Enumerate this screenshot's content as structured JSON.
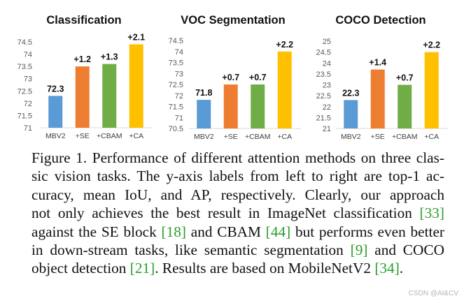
{
  "chart_data": [
    {
      "type": "bar",
      "title": "Classification",
      "categories": [
        "MBV2",
        "+SE",
        "+CBAM",
        "+CA"
      ],
      "values": [
        72.3,
        73.5,
        73.6,
        74.4
      ],
      "data_labels": [
        "72.3",
        "+1.2",
        "+1.3",
        "+2.1"
      ],
      "ylim": [
        71,
        74.5
      ],
      "yticks": [
        "71",
        "71.5",
        "72",
        "72.5",
        "73",
        "73.5",
        "74",
        "74.5"
      ],
      "xlabel": "",
      "ylabel": "",
      "colors": [
        "#5b9bd5",
        "#ed7d31",
        "#70ad47",
        "#ffc000"
      ]
    },
    {
      "type": "bar",
      "title": "VOC Segmentation",
      "categories": [
        "MBV2",
        "+SE",
        "+CBAM",
        "+CA"
      ],
      "values": [
        71.8,
        72.5,
        72.5,
        74.0
      ],
      "data_labels": [
        "71.8",
        "+0.7",
        "+0.7",
        "+2.2"
      ],
      "ylim": [
        70.5,
        74.5
      ],
      "yticks": [
        "70.5",
        "71",
        "71.5",
        "72",
        "72.5",
        "73",
        "73.5",
        "74",
        "74.5"
      ],
      "xlabel": "",
      "ylabel": "",
      "colors": [
        "#5b9bd5",
        "#ed7d31",
        "#70ad47",
        "#ffc000"
      ]
    },
    {
      "type": "bar",
      "title": "COCO Detection",
      "categories": [
        "MBV2",
        "+SE",
        "+CBAM",
        "+CA"
      ],
      "values": [
        22.3,
        23.7,
        23.0,
        24.5
      ],
      "data_labels": [
        "22.3",
        "+1.4",
        "+0.7",
        "+2.2"
      ],
      "ylim": [
        21,
        25
      ],
      "yticks": [
        "21",
        "21.5",
        "22",
        "22.5",
        "23",
        "23.5",
        "24",
        "24.5",
        "25"
      ],
      "xlabel": "",
      "ylabel": "",
      "colors": [
        "#5b9bd5",
        "#ed7d31",
        "#70ad47",
        "#ffc000"
      ]
    }
  ],
  "caption": {
    "lines": [
      "Figure 1. Performance of different attention methods on three clas-",
      "sic vision tasks. The y-axis labels from left to right are top-1 ac-",
      "curacy, mean IoU, and AP, respectively. Clearly, our approach",
      "not only achieves the best result in ImageNet classification [33]",
      "against the SE block [18] and CBAM [44] but performs even better",
      "in down-stream tasks, like semantic segmentation [9] and COCO",
      "object detection [21]. Results are based on MobileNetV2 [34]."
    ]
  },
  "watermark": "CSDN @AI&CV"
}
